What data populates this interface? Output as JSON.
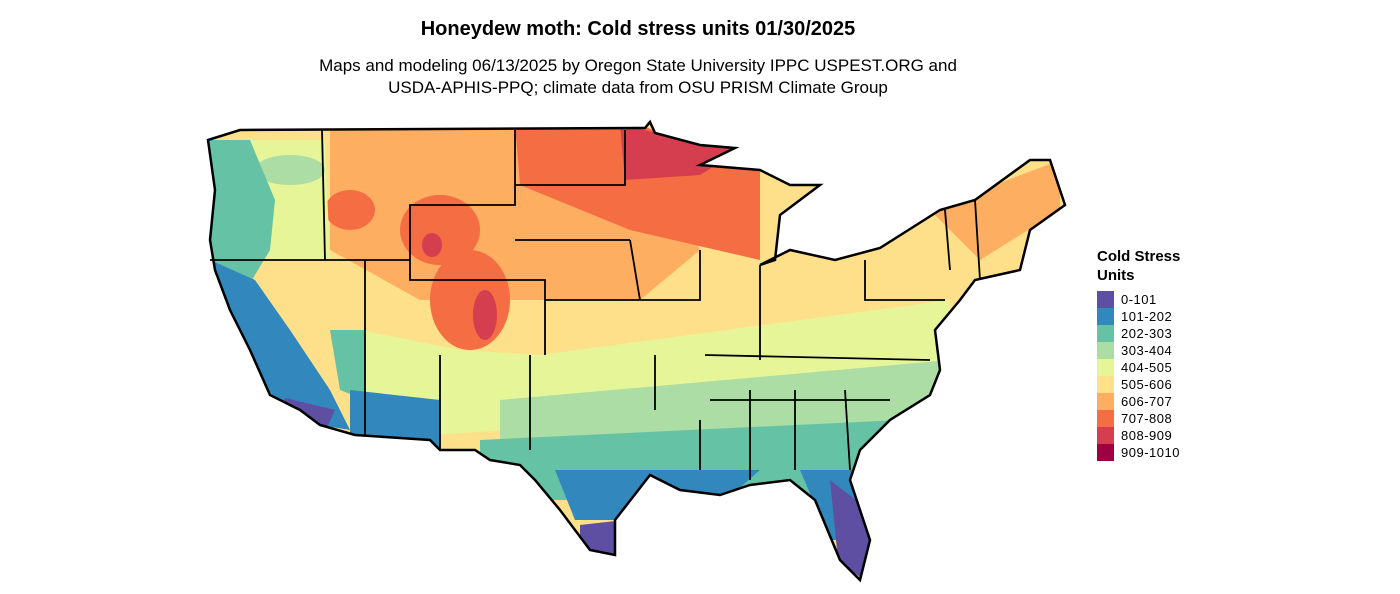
{
  "header": {
    "title": "Honeydew moth: Cold stress units 01/30/2025",
    "subtitle_lines": [
      "Maps and modeling 06/13/2025 by Oregon State University IPPC USPEST.ORG and",
      "USDA-APHIS-PPQ; climate data from OSU PRISM Climate Group"
    ]
  },
  "legend": {
    "title": "Cold Stress Units",
    "items": [
      {
        "label": "0-101",
        "color": "#5e4fa2"
      },
      {
        "label": "101-202",
        "color": "#3288bd"
      },
      {
        "label": "202-303",
        "color": "#66c2a5"
      },
      {
        "label": "303-404",
        "color": "#abdda4"
      },
      {
        "label": "404-505",
        "color": "#e6f598"
      },
      {
        "label": "505-606",
        "color": "#fee08b"
      },
      {
        "label": "606-707",
        "color": "#fdae61"
      },
      {
        "label": "707-808",
        "color": "#f46d43"
      },
      {
        "label": "808-909",
        "color": "#d53e4f"
      },
      {
        "label": "909-1010",
        "color": "#9e0142"
      }
    ]
  }
}
